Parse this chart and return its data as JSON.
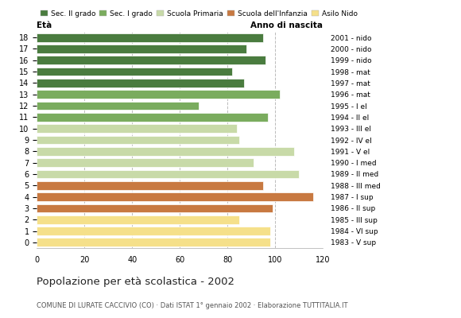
{
  "ages": [
    18,
    17,
    16,
    15,
    14,
    13,
    12,
    11,
    10,
    9,
    8,
    7,
    6,
    5,
    4,
    3,
    2,
    1,
    0
  ],
  "values": [
    95,
    88,
    96,
    82,
    87,
    102,
    68,
    97,
    84,
    85,
    108,
    91,
    110,
    95,
    116,
    99,
    85,
    98,
    98
  ],
  "right_labels": [
    "1983 - V sup",
    "1984 - VI sup",
    "1985 - III sup",
    "1986 - II sup",
    "1987 - I sup",
    "1988 - III med",
    "1989 - II med",
    "1990 - I med",
    "1991 - V el",
    "1992 - IV el",
    "1993 - III el",
    "1994 - II el",
    "1995 - I el",
    "1996 - mat",
    "1997 - mat",
    "1998 - mat",
    "1999 - nido",
    "2000 - nido",
    "2001 - nido"
  ],
  "colors": {
    "18": "#4a7c3f",
    "17": "#4a7c3f",
    "16": "#4a7c3f",
    "15": "#4a7c3f",
    "14": "#4a7c3f",
    "13": "#7aac5e",
    "12": "#7aac5e",
    "11": "#7aac5e",
    "10": "#c8daa8",
    "9": "#c8daa8",
    "8": "#c8daa8",
    "7": "#c8daa8",
    "6": "#c8daa8",
    "5": "#c87941",
    "4": "#c87941",
    "3": "#c87941",
    "2": "#f5e08a",
    "1": "#f5e08a",
    "0": "#f5e08a"
  },
  "legend_labels": [
    "Sec. II grado",
    "Sec. I grado",
    "Scuola Primaria",
    "Scuola dell'Infanzia",
    "Asilo Nido"
  ],
  "legend_colors": [
    "#4a7c3f",
    "#7aac5e",
    "#c8daa8",
    "#c87941",
    "#f5e08a"
  ],
  "title": "Popolazione per età scolastica - 2002",
  "subtitle": "COMUNE DI LURATE CACCIVIO (CO) · Dati ISTAT 1° gennaio 2002 · Elaborazione TUTTITALIA.IT",
  "xlabel_left": "Età",
  "xlabel_right": "Anno di nascita",
  "xlim": [
    0,
    120
  ],
  "xticks": [
    0,
    20,
    40,
    60,
    80,
    100,
    120
  ],
  "background_color": "#ffffff",
  "grid_color": "#bbbbbb"
}
